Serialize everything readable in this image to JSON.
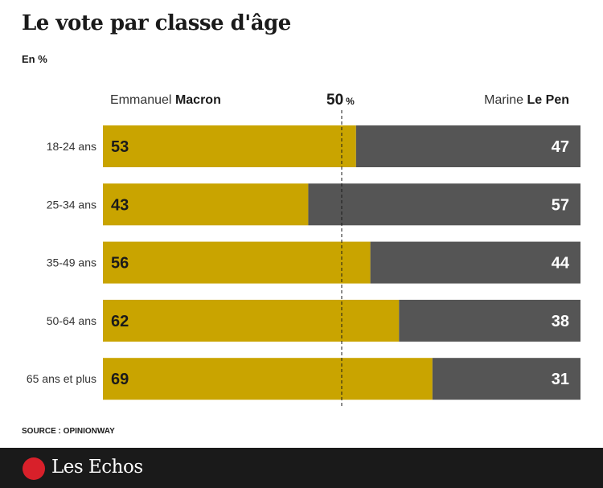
{
  "header": {
    "title": "Le vote par classe d'âge",
    "subtitle": "En %"
  },
  "series_labels": {
    "left_first": "Emmanuel",
    "left_last": "Macron",
    "right_first": "Marine",
    "right_last": "Le Pen"
  },
  "midline": {
    "value": "50",
    "unit": "%"
  },
  "source": "SOURCE : OPINIONWAY",
  "footer": {
    "brand": "Les Echos",
    "logo_icon": "les-echos-logo-icon"
  },
  "colors": {
    "macron": "#c9a400",
    "lepen": "#555555",
    "value_dark": "#1a1a1a",
    "value_light": "#ffffff",
    "background": "#ffffff"
  },
  "chart_data": {
    "type": "bar",
    "orientation": "horizontal",
    "stacked": true,
    "title": "Le vote par classe d'âge",
    "unit": "En %",
    "categories": [
      "18-24 ans",
      "25-34 ans",
      "35-49 ans",
      "50-64 ans",
      "65 ans et plus"
    ],
    "series": [
      {
        "name": "Emmanuel Macron",
        "values": [
          53,
          43,
          56,
          62,
          69
        ]
      },
      {
        "name": "Marine Le Pen",
        "values": [
          47,
          57,
          44,
          38,
          31
        ]
      }
    ],
    "xlim": [
      0,
      100
    ],
    "reference_line": 50
  }
}
